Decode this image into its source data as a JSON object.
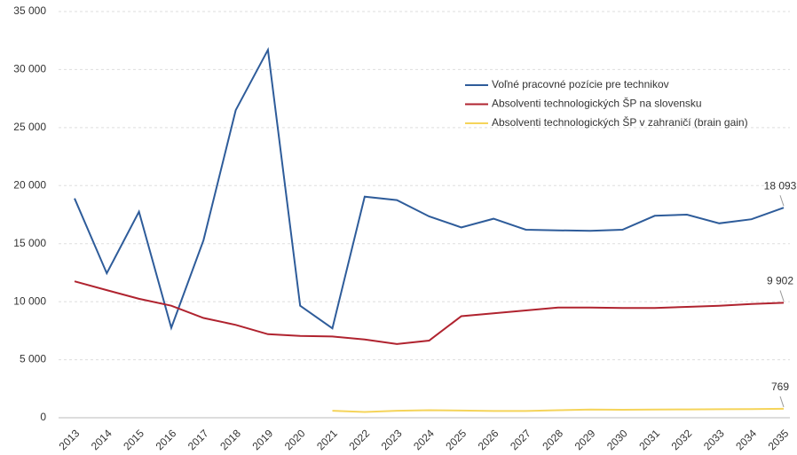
{
  "chart_data": {
    "type": "line",
    "categories": [
      "2013",
      "2014",
      "2015",
      "2016",
      "2017",
      "2018",
      "2019",
      "2020",
      "2021",
      "2022",
      "2023",
      "2024",
      "2025",
      "2026",
      "2027",
      "2028",
      "2029",
      "2030",
      "2031",
      "2032",
      "2033",
      "2034",
      "2035"
    ],
    "series": [
      {
        "name": "Voľné pracovné pozície pre technikov",
        "color": "#2e5c9a",
        "values": [
          18900,
          12450,
          17750,
          7750,
          15300,
          26500,
          31700,
          9650,
          7700,
          19050,
          18750,
          17350,
          16400,
          17150,
          16200,
          16150,
          16100,
          16200,
          17400,
          17500,
          16750,
          17100,
          18093
        ],
        "value_labels": [
          null,
          null,
          null,
          null,
          null,
          null,
          null,
          null,
          null,
          null,
          null,
          null,
          null,
          null,
          null,
          null,
          null,
          null,
          null,
          null,
          null,
          null,
          "18 093"
        ]
      },
      {
        "name": "Absolventi technologických ŠP na slovensku",
        "color": "#b0232f",
        "values": [
          11750,
          11000,
          10250,
          9650,
          8600,
          8000,
          7200,
          7050,
          7000,
          6750,
          6350,
          6650,
          8750,
          9000,
          9250,
          9500,
          9500,
          9450,
          9450,
          9550,
          9650,
          9800,
          9902
        ],
        "value_labels": [
          null,
          null,
          null,
          null,
          null,
          null,
          null,
          null,
          null,
          null,
          null,
          null,
          null,
          null,
          null,
          null,
          null,
          null,
          null,
          null,
          null,
          null,
          "9 902"
        ]
      },
      {
        "name": "Absolventi technologických ŠP v zahraničí (brain gain)",
        "color": "#f5d45a",
        "values": [
          null,
          null,
          null,
          null,
          null,
          null,
          null,
          null,
          600,
          500,
          600,
          650,
          620,
          580,
          580,
          650,
          700,
          690,
          700,
          720,
          730,
          740,
          769
        ],
        "value_labels": [
          null,
          null,
          null,
          null,
          null,
          null,
          null,
          null,
          null,
          null,
          null,
          null,
          null,
          null,
          null,
          null,
          null,
          null,
          null,
          null,
          null,
          null,
          "769"
        ]
      }
    ],
    "ylim": [
      0,
      35000
    ],
    "yticks": [
      0,
      {
        "value": 5000,
        "label": "5 000"
      },
      {
        "value": 10000,
        "label": "10 000"
      },
      {
        "value": 15000,
        "label": "15 000"
      },
      {
        "value": 20000,
        "label": "20 000"
      },
      {
        "value": 25000,
        "label": "25 000"
      },
      {
        "value": 30000,
        "label": "30 000"
      },
      {
        "value": 35000,
        "label": "35 000"
      }
    ],
    "grid": true
  }
}
